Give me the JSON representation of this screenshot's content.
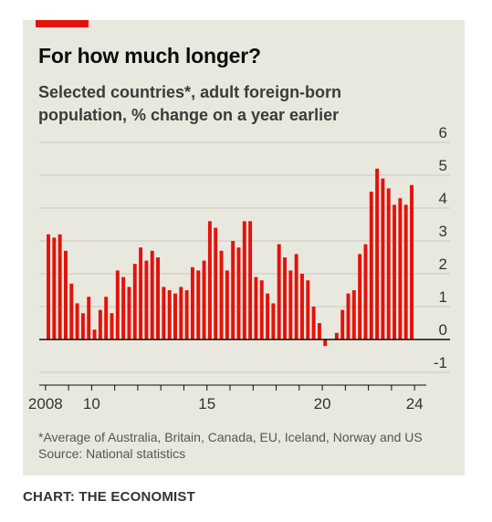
{
  "chart_data": {
    "type": "bar",
    "title": "For how much longer?",
    "subtitle": "Selected countries*, adult foreign-born population, % change on a year earlier",
    "footnote": "*Average of Australia, Britain, Canada, EU, Iceland, Norway and US",
    "source": "Source: National statistics",
    "ylim": [
      -1,
      6
    ],
    "y_ticks": [
      "6",
      "5",
      "4",
      "3",
      "2",
      "1",
      "0",
      "-1"
    ],
    "x_ticks": [
      "2008",
      "10",
      "15",
      "20",
      "24"
    ],
    "x_start_year": 2008,
    "periods_per_year": 4,
    "grid": true,
    "color": "#e3120b",
    "values": [
      3.2,
      3.1,
      3.2,
      2.7,
      1.7,
      1.1,
      0.8,
      1.3,
      0.3,
      0.9,
      1.3,
      0.8,
      2.1,
      1.9,
      1.6,
      2.3,
      2.8,
      2.4,
      2.7,
      2.5,
      1.6,
      1.5,
      1.4,
      1.6,
      1.5,
      2.2,
      2.1,
      2.4,
      3.6,
      3.4,
      2.7,
      2.1,
      3.0,
      2.8,
      3.6,
      3.6,
      1.9,
      1.8,
      1.4,
      1.1,
      2.9,
      2.5,
      2.1,
      2.6,
      2.0,
      1.8,
      1.0,
      0.5,
      -0.2,
      0.0,
      0.2,
      0.9,
      1.4,
      1.5,
      2.6,
      2.9,
      4.5,
      5.2,
      4.9,
      4.6,
      4.1,
      4.3,
      4.1,
      4.7
    ]
  },
  "credit": "CHART: THE ECONOMIST"
}
